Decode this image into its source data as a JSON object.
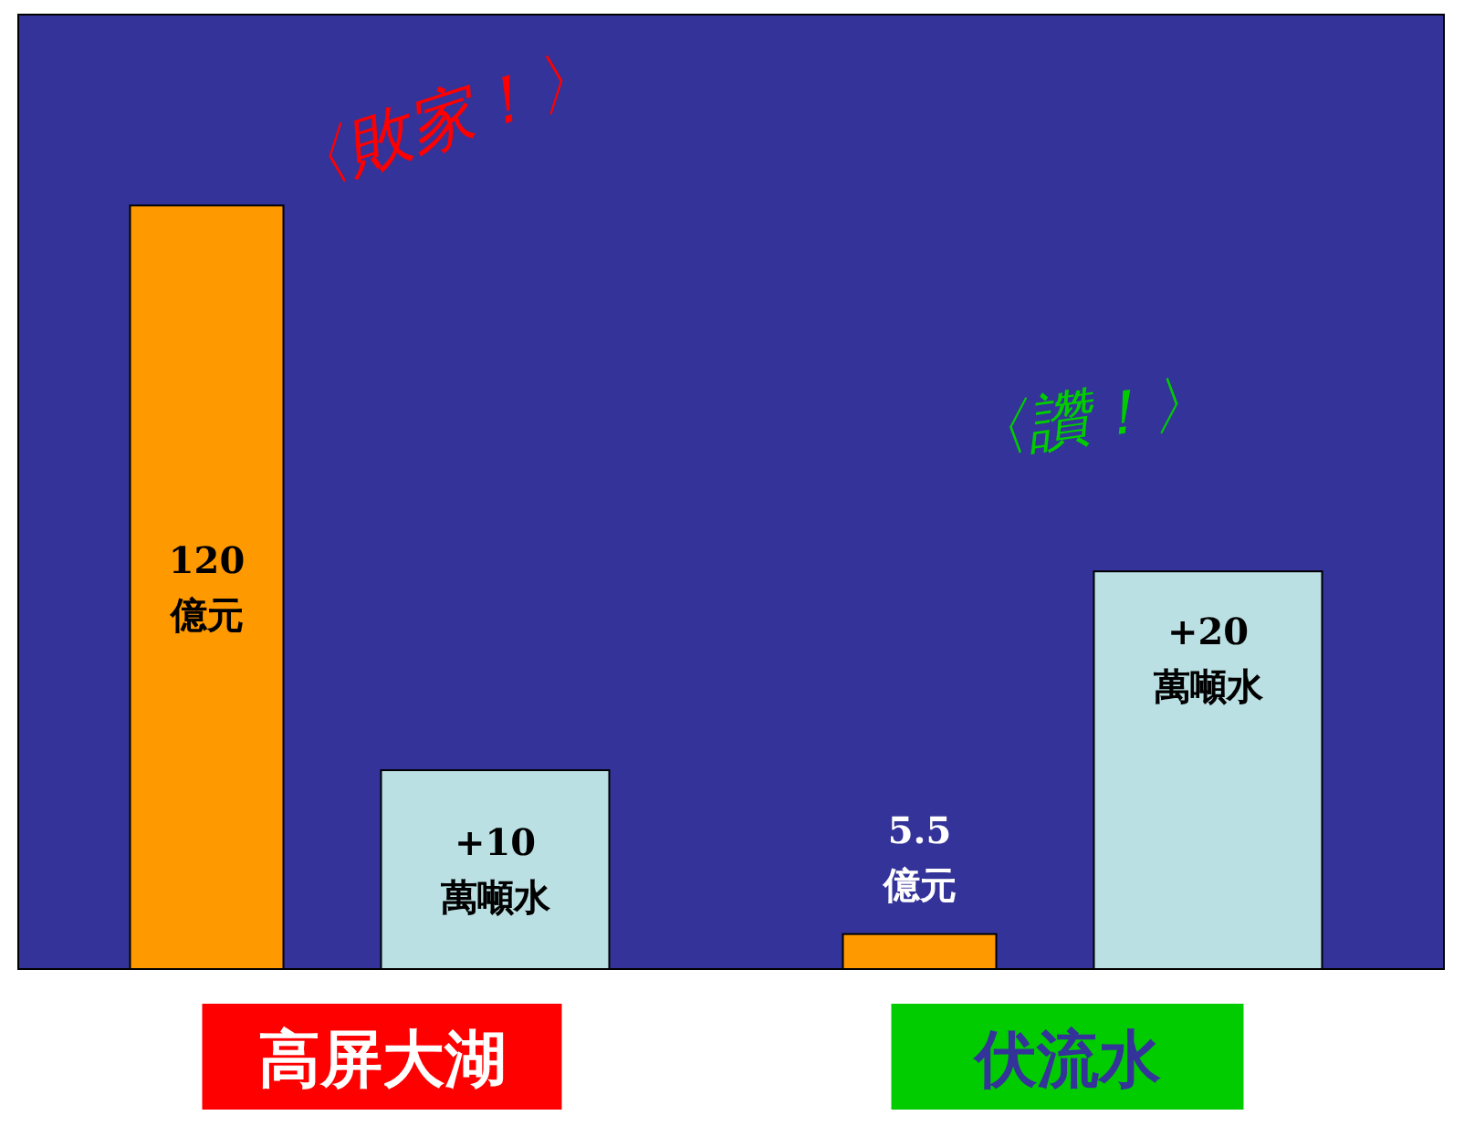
{
  "chart_data": {
    "type": "bar",
    "categories": [
      "高屏大湖",
      "伏流水"
    ],
    "ylim": [
      0,
      150
    ],
    "y2lim": [
      0,
      48
    ],
    "tick_labels": "x",
    "series": [
      {
        "color": "#ff9900",
        "values": [
          120,
          5.5
        ],
        "value_labels": [
          "120 億元",
          "5.5 億元"
        ]
      },
      {
        "color": "#bbe0e3",
        "axis": "y2",
        "values": [
          10,
          20
        ],
        "value_labels": [
          "+10 萬噸水",
          "+20 萬噸水"
        ]
      }
    ],
    "annotations": [
      "〈敗家！〉",
      "〈讚！〉"
    ]
  }
}
